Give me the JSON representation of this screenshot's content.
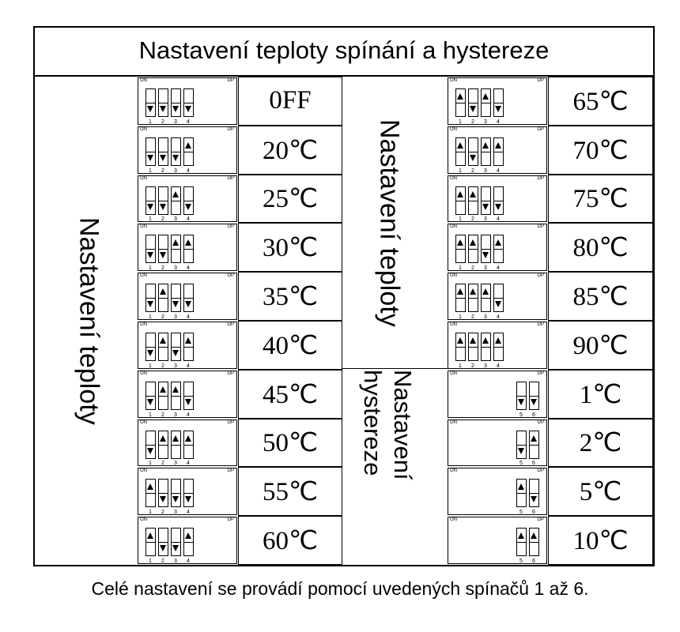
{
  "title": "Nastavení teploty spínání a hystereze",
  "label_left": "Nastavení teploty",
  "label_middle_top": "Nastavení teploty",
  "label_middle_bottom": "Nastavení hystereze",
  "switch_on_label": "ON",
  "switch_dp_label": "DP",
  "left_column": [
    {
      "value": "0FF",
      "switches": [
        "down",
        "down",
        "down",
        "down"
      ]
    },
    {
      "value": "20℃",
      "switches": [
        "down",
        "down",
        "down",
        "up"
      ]
    },
    {
      "value": "25℃",
      "switches": [
        "down",
        "down",
        "up",
        "down"
      ]
    },
    {
      "value": "30℃",
      "switches": [
        "down",
        "down",
        "up",
        "up"
      ]
    },
    {
      "value": "35℃",
      "switches": [
        "down",
        "up",
        "down",
        "down"
      ]
    },
    {
      "value": "40℃",
      "switches": [
        "down",
        "up",
        "down",
        "up"
      ]
    },
    {
      "value": "45℃",
      "switches": [
        "down",
        "up",
        "up",
        "down"
      ]
    },
    {
      "value": "50℃",
      "switches": [
        "down",
        "up",
        "up",
        "up"
      ]
    },
    {
      "value": "55℃",
      "switches": [
        "up",
        "down",
        "down",
        "down"
      ]
    },
    {
      "value": "60℃",
      "switches": [
        "up",
        "down",
        "down",
        "up"
      ]
    }
  ],
  "right_temp_column": [
    {
      "value": "65℃",
      "switches": [
        "up",
        "down",
        "up",
        "down"
      ]
    },
    {
      "value": "70℃",
      "switches": [
        "up",
        "down",
        "up",
        "up"
      ]
    },
    {
      "value": "75℃",
      "switches": [
        "up",
        "up",
        "down",
        "down"
      ]
    },
    {
      "value": "80℃",
      "switches": [
        "up",
        "up",
        "down",
        "up"
      ]
    },
    {
      "value": "85℃",
      "switches": [
        "up",
        "up",
        "up",
        "down"
      ]
    },
    {
      "value": "90℃",
      "switches": [
        "up",
        "up",
        "up",
        "up"
      ]
    }
  ],
  "right_hyst_column": [
    {
      "value": "1℃",
      "switches": [
        "down",
        "down"
      ]
    },
    {
      "value": "2℃",
      "switches": [
        "down",
        "up"
      ]
    },
    {
      "value": "5℃",
      "switches": [
        "up",
        "down"
      ]
    },
    {
      "value": "10℃",
      "switches": [
        "up",
        "up"
      ]
    }
  ],
  "switch_numbers_4": [
    "1",
    "2",
    "3",
    "4"
  ],
  "switch_numbers_2": [
    "5",
    "6"
  ],
  "caption": "Celé nastavení se provádí pomocí uvedených spínačů 1 až 6."
}
